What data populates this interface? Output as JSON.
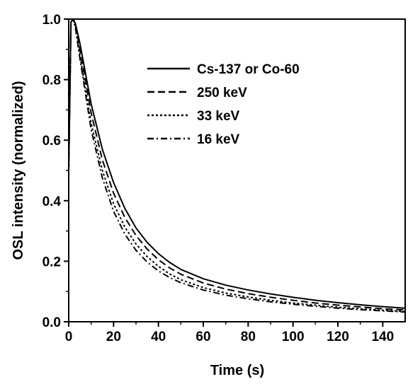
{
  "chart_data": {
    "type": "line",
    "xlabel": "Time (s)",
    "ylabel": "OSL intensity (normalized)",
    "xlim": [
      0,
      150
    ],
    "ylim": [
      0,
      1.0
    ],
    "xticks": [
      0,
      20,
      40,
      60,
      80,
      100,
      120,
      140
    ],
    "yticks": [
      0.0,
      0.2,
      0.4,
      0.6,
      0.8,
      1.0
    ],
    "xtick_labels": [
      "0",
      "20",
      "40",
      "60",
      "80",
      "100",
      "120",
      "140"
    ],
    "ytick_labels": [
      "0.0",
      "0.2",
      "0.4",
      "0.6",
      "0.8",
      "1.0"
    ],
    "grid": false,
    "legend_position": "top-center",
    "x": [
      0,
      1,
      2,
      3,
      5,
      10,
      15,
      20,
      25,
      30,
      35,
      40,
      45,
      50,
      60,
      70,
      80,
      90,
      100,
      110,
      120,
      130,
      140,
      150
    ],
    "series": [
      {
        "name": "Cs-137 or Co-60",
        "line_style": "solid",
        "color": "#000000",
        "values": [
          0.5,
          0.99,
          1.0,
          0.985,
          0.92,
          0.72,
          0.57,
          0.46,
          0.375,
          0.31,
          0.262,
          0.225,
          0.196,
          0.173,
          0.142,
          0.121,
          0.105,
          0.092,
          0.081,
          0.071,
          0.063,
          0.056,
          0.05,
          0.045
        ]
      },
      {
        "name": "250 keV",
        "line_style": "dashed",
        "color": "#000000",
        "values": [
          0.5,
          0.99,
          1.0,
          0.98,
          0.9,
          0.69,
          0.535,
          0.425,
          0.345,
          0.285,
          0.24,
          0.205,
          0.178,
          0.157,
          0.128,
          0.108,
          0.093,
          0.081,
          0.071,
          0.062,
          0.055,
          0.049,
          0.043,
          0.039
        ]
      },
      {
        "name": "33 keV",
        "line_style": "dotted",
        "color": "#000000",
        "values": [
          0.5,
          0.99,
          1.0,
          0.975,
          0.88,
          0.655,
          0.5,
          0.39,
          0.313,
          0.257,
          0.215,
          0.183,
          0.158,
          0.139,
          0.113,
          0.095,
          0.082,
          0.071,
          0.062,
          0.055,
          0.048,
          0.043,
          0.038,
          0.034
        ]
      },
      {
        "name": "16 keV",
        "line_style": "dash-dot",
        "color": "#000000",
        "values": [
          0.5,
          0.99,
          1.0,
          0.97,
          0.87,
          0.635,
          0.475,
          0.365,
          0.29,
          0.236,
          0.197,
          0.168,
          0.146,
          0.129,
          0.105,
          0.088,
          0.076,
          0.066,
          0.058,
          0.051,
          0.045,
          0.04,
          0.036,
          0.032
        ]
      }
    ]
  }
}
